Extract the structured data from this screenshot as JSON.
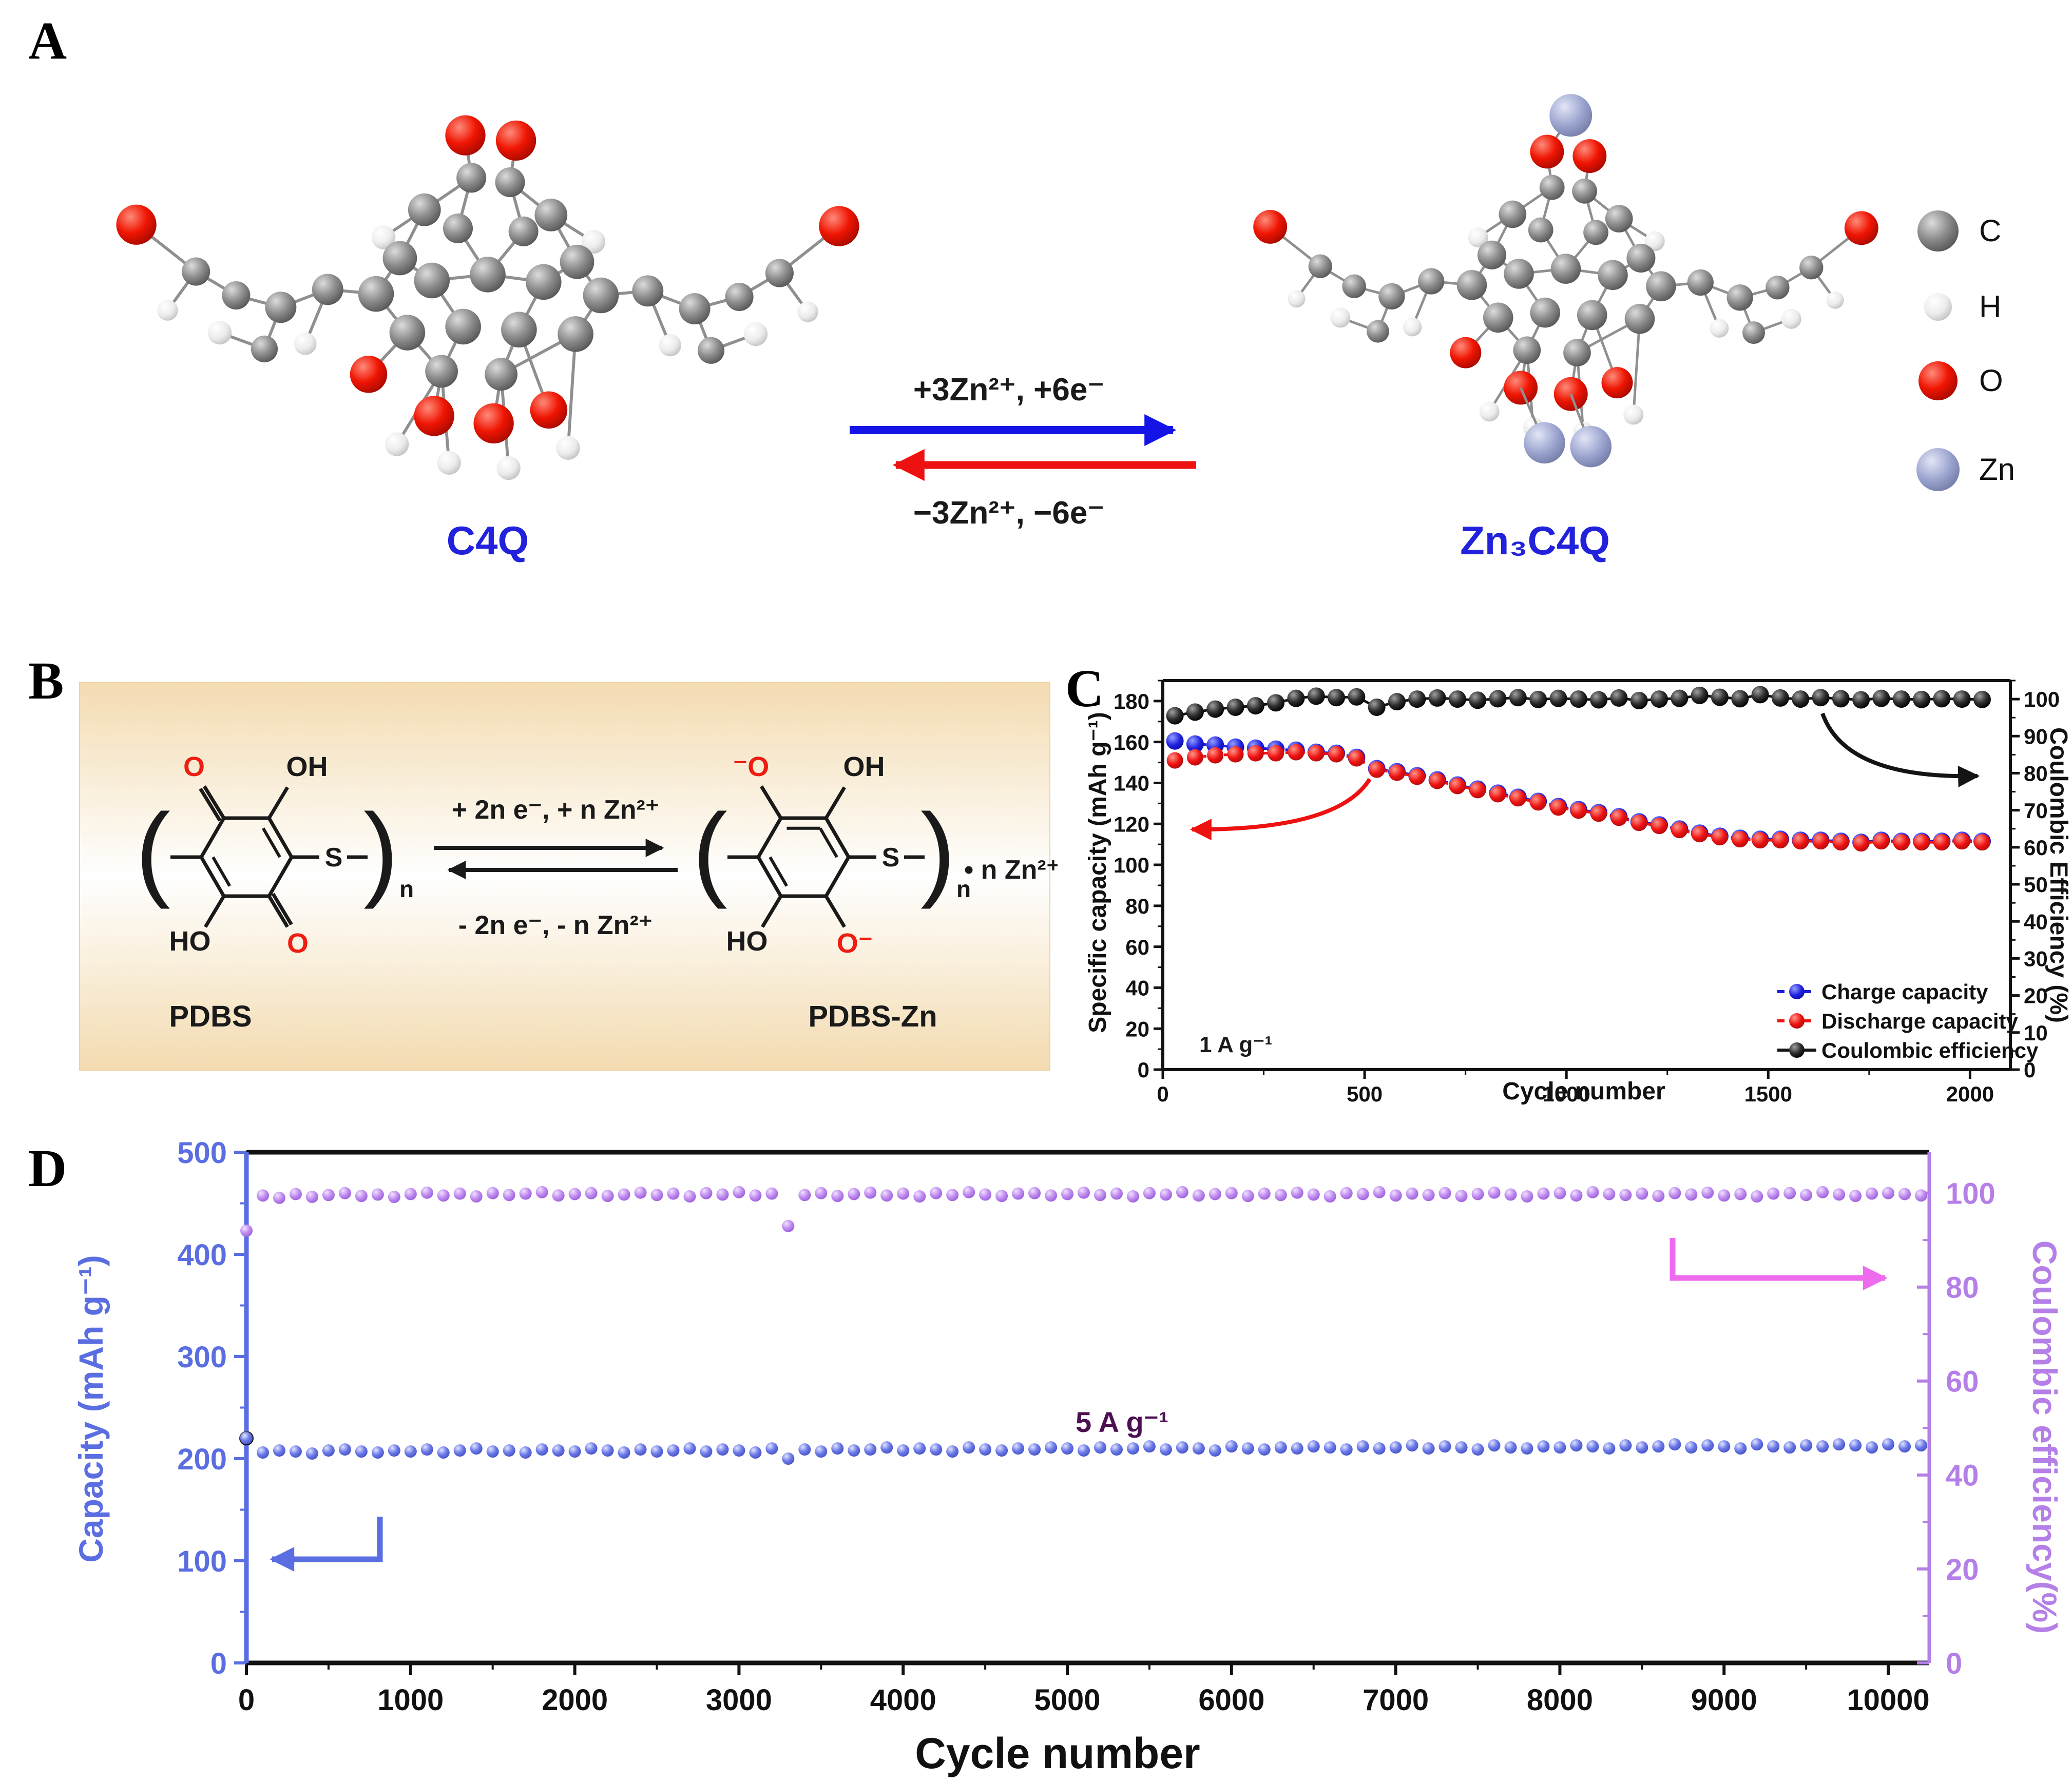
{
  "panel_a": {
    "label": "A",
    "molecule_left_label": "C4Q",
    "molecule_right_label": "Zn₃C4Q",
    "forward_reaction": "+3Zn²⁺, +6e⁻",
    "reverse_reaction": "−3Zn²⁺, −6e⁻",
    "label_color": "#2222dd",
    "forward_arrow_color": "#1414e6",
    "reverse_arrow_color": "#ee1111",
    "atom_legend": [
      {
        "symbol": "C",
        "color": "#8a8a8a"
      },
      {
        "symbol": "H",
        "color": "#f3f3f3"
      },
      {
        "symbol": "O",
        "color": "#e01000"
      },
      {
        "symbol": "Zn",
        "color": "#9aa3cd"
      }
    ]
  },
  "panel_b": {
    "label": "B",
    "left_name": "PDBS",
    "right_name": "PDBS-Zn",
    "forward_reaction": "+ 2n e⁻, + n Zn²⁺",
    "reverse_reaction": "- 2n e⁻, - n Zn²⁺",
    "counter_ion": "• n Zn²⁺",
    "atoms": {
      "o": "O",
      "o_neg_left": "⁻O",
      "o_neg_right": "O⁻",
      "oh": "OH",
      "ho": "HO",
      "s": "S",
      "n": "n"
    },
    "oxygen_color": "#ee1c11",
    "bond_color": "#1a1a1a"
  },
  "panel_c": {
    "label": "C"
  },
  "panel_d": {
    "label": "D"
  },
  "chart_data": [
    {
      "id": "panel-c",
      "type": "scatter",
      "xlabel": "Cycle number",
      "ylabel_left": "Specific capacity (mAh g⁻¹)",
      "ylabel_right": "Coulombic Efficiency (%)",
      "annotation": "1 A g⁻¹",
      "annotation_color": "#1a1a1a",
      "xlim": [
        0,
        2100
      ],
      "ylim_left": [
        0,
        190
      ],
      "ylim_right": [
        0,
        105
      ],
      "xticks": [
        0,
        500,
        1000,
        1500,
        2000
      ],
      "xminor_step": 250,
      "yticks_left": [
        0,
        20,
        40,
        60,
        80,
        100,
        120,
        140,
        160,
        180
      ],
      "yminor_left_step": 10,
      "yticks_right": [
        0,
        10,
        20,
        30,
        40,
        50,
        60,
        70,
        80,
        90,
        100
      ],
      "yminor_right_step": 5,
      "grid": false,
      "legend_position": "lower right",
      "series": [
        {
          "name": "Charge capacity",
          "color": "#1d1de0",
          "axis": "left",
          "line": "dashed",
          "x": [
            30,
            80,
            130,
            180,
            230,
            280,
            330,
            380,
            430,
            480,
            530,
            580,
            630,
            680,
            730,
            780,
            830,
            880,
            930,
            980,
            1030,
            1080,
            1130,
            1180,
            1230,
            1280,
            1330,
            1380,
            1430,
            1480,
            1530,
            1580,
            1630,
            1680,
            1730,
            1780,
            1830,
            1880,
            1930,
            1980,
            2030
          ],
          "y": [
            160.5,
            159,
            158.5,
            157.5,
            157,
            156.5,
            156,
            155,
            154.5,
            152.5,
            147,
            145.5,
            143.5,
            141.5,
            139,
            137,
            135,
            133,
            131,
            128.5,
            127,
            125.5,
            123.5,
            121,
            119.5,
            117.5,
            115.5,
            114,
            113,
            112.5,
            112.5,
            112,
            112,
            111.5,
            111,
            112,
            111.5,
            111.5,
            111.5,
            112,
            111.5
          ]
        },
        {
          "name": "Discharge capacity",
          "color": "#ee1111",
          "axis": "left",
          "line": "dashed",
          "x": [
            30,
            80,
            130,
            180,
            230,
            280,
            330,
            380,
            430,
            480,
            530,
            580,
            630,
            680,
            730,
            780,
            830,
            880,
            930,
            980,
            1030,
            1080,
            1130,
            1180,
            1230,
            1280,
            1330,
            1380,
            1430,
            1480,
            1530,
            1580,
            1630,
            1680,
            1730,
            1780,
            1830,
            1880,
            1930,
            1980,
            2030
          ],
          "y": [
            151,
            152.5,
            153.5,
            154,
            154.5,
            154.5,
            155,
            154.5,
            154,
            152,
            146.5,
            145,
            143,
            141,
            138.5,
            136.5,
            134.5,
            132.5,
            130.5,
            128,
            126.5,
            125,
            123,
            120.5,
            119,
            117,
            115,
            113.5,
            112.5,
            112,
            112,
            111.5,
            111.5,
            111,
            110.5,
            111.5,
            111,
            111,
            111,
            111.5,
            111
          ]
        },
        {
          "name": "Coulombic efficiency",
          "color": "#141414",
          "axis": "right",
          "line": "solid",
          "x": [
            30,
            80,
            130,
            180,
            230,
            280,
            330,
            380,
            430,
            480,
            530,
            580,
            630,
            680,
            730,
            780,
            830,
            880,
            930,
            980,
            1030,
            1080,
            1130,
            1180,
            1230,
            1280,
            1330,
            1380,
            1430,
            1480,
            1530,
            1580,
            1630,
            1680,
            1730,
            1780,
            1830,
            1880,
            1930,
            1980,
            2030
          ],
          "y": [
            95.5,
            96.5,
            97.3,
            97.8,
            98.2,
            99,
            100.2,
            100.8,
            100.4,
            100.6,
            97.8,
            99.3,
            100,
            100.3,
            100,
            99.7,
            100.1,
            100.4,
            99.9,
            100.2,
            100,
            99.8,
            100.3,
            99.6,
            100,
            100.2,
            101,
            100.5,
            100.1,
            101.2,
            100.3,
            100,
            100.4,
            100.1,
            99.8,
            100.2,
            100,
            99.9,
            100.1,
            100,
            99.9
          ]
        }
      ]
    },
    {
      "id": "panel-d",
      "type": "scatter",
      "xlabel": "Cycle number",
      "ylabel_left": "Capacity (mAh g⁻¹)",
      "ylabel_right": "Coulombic efficiency(%)",
      "annotation": "5 A g⁻¹",
      "annotation_color": "#4b0f52",
      "xlim": [
        0,
        10250
      ],
      "ylim_left": [
        0,
        500
      ],
      "ylim_right": [
        0,
        108.7
      ],
      "xticks": [
        0,
        1000,
        2000,
        3000,
        4000,
        5000,
        6000,
        7000,
        8000,
        9000,
        10000
      ],
      "xminor_step": 500,
      "yticks_left": [
        0,
        100,
        200,
        300,
        400,
        500
      ],
      "yminor_left_step": 50,
      "yticks_right": [
        0,
        20,
        40,
        60,
        80,
        100
      ],
      "yminor_right_step": 10,
      "grid": false,
      "axis_colors": {
        "left": "#5b6ee1",
        "bottom": "#111111",
        "top": "#111111",
        "right": "#b57fe8"
      },
      "series": [
        {
          "name": "Charge capacity",
          "color": "#3a3a3a",
          "axis": "left",
          "line": "none",
          "x": [
            0
          ],
          "y": [
            220
          ]
        },
        {
          "name": "Capacity",
          "color": "#6b79e8",
          "axis": "left",
          "line": "none",
          "x_start": 0,
          "x_step": 100,
          "y": [
            220,
            206,
            208,
            207,
            205,
            208,
            209,
            207,
            206,
            208,
            207,
            209,
            206,
            208,
            210,
            207,
            208,
            206,
            209,
            208,
            207,
            210,
            208,
            206,
            209,
            207,
            208,
            210,
            207,
            209,
            208,
            206,
            210,
            200,
            209,
            207,
            210,
            208,
            209,
            211,
            208,
            210,
            209,
            207,
            211,
            209,
            208,
            210,
            209,
            211,
            210,
            208,
            211,
            209,
            210,
            212,
            209,
            211,
            210,
            208,
            212,
            210,
            209,
            211,
            210,
            212,
            211,
            209,
            212,
            210,
            211,
            213,
            210,
            212,
            211,
            209,
            213,
            211,
            210,
            212,
            211,
            213,
            212,
            210,
            213,
            211,
            212,
            214,
            211,
            213,
            212,
            210,
            214,
            212,
            211,
            213,
            212,
            214,
            213,
            211,
            214,
            212,
            213
          ]
        },
        {
          "name": "Coulombic efficiency",
          "color": "#bb86ee",
          "axis": "right",
          "line": "none",
          "x_start": 0,
          "x_step": 100,
          "y": [
            92,
            99.5,
            99,
            99.8,
            99.2,
            99.6,
            100,
            99.4,
            99.7,
            99.2,
            99.8,
            100.1,
            99.5,
            99.9,
            99.3,
            100,
            99.6,
            99.9,
            100.2,
            99.5,
            99.8,
            100,
            99.4,
            99.7,
            100.1,
            99.6,
            99.9,
            99.3,
            100,
            99.7,
            100.2,
            99.5,
            99.9,
            93,
            99.6,
            100,
            99.4,
            99.8,
            100.1,
            99.5,
            99.9,
            99.3,
            100,
            99.6,
            100.2,
            99.7,
            99.4,
            99.9,
            100,
            99.5,
            99.8,
            100.1,
            99.6,
            99.9,
            99.3,
            100,
            99.7,
            100.2,
            99.5,
            99.8,
            100,
            99.4,
            99.9,
            99.6,
            100.1,
            99.7,
            99.3,
            100,
            99.8,
            100.2,
            99.5,
            99.9,
            99.6,
            100,
            99.4,
            99.8,
            100.1,
            99.7,
            99.3,
            99.9,
            100,
            99.5,
            100.2,
            99.8,
            99.6,
            99.9,
            99.4,
            100,
            99.7,
            100.1,
            99.5,
            99.8,
            99.3,
            99.9,
            100,
            99.6,
            100.2,
            99.7,
            99.4,
            99.9,
            100,
            99.8,
            99.5
          ]
        }
      ]
    }
  ]
}
